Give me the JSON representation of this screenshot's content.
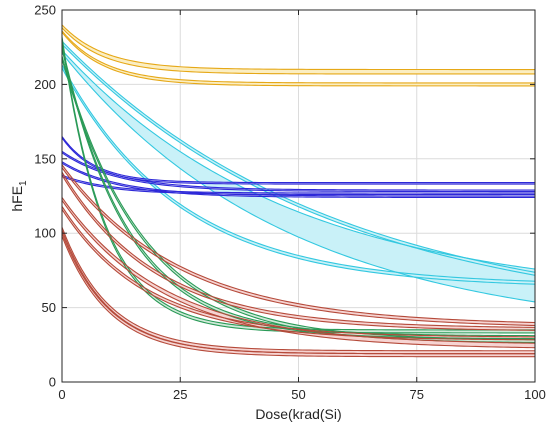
{
  "chart_data": {
    "type": "line",
    "title": "",
    "xlabel": "Dose(krad(Si)",
    "ylabel": "hFE",
    "ylabel_subscript": "1",
    "xlim": [
      0,
      100
    ],
    "ylim": [
      0,
      250
    ],
    "xticks": [
      0,
      25,
      50,
      75,
      100
    ],
    "yticks": [
      0,
      50,
      100,
      150,
      200,
      250
    ],
    "grid": true,
    "legend": "none",
    "series": [
      {
        "color": "#e6a817",
        "fill": "#fbeec2",
        "upper": {
          "start": 240,
          "end": 210,
          "tau": 9
        },
        "lower": {
          "start": 238,
          "end": 207,
          "tau": 9
        }
      },
      {
        "color": "#e6a817",
        "fill": "#fbeec2",
        "upper": {
          "start": 236,
          "end": 201,
          "tau": 9
        },
        "lower": {
          "start": 235,
          "end": 199,
          "tau": 9
        }
      },
      {
        "color": "#33c8e0",
        "fill": "#c9f1f8",
        "upper": {
          "start": 229,
          "end": 40,
          "tau": 58
        },
        "lower": {
          "start": 227,
          "end": 38,
          "tau": 58
        }
      },
      {
        "color": "#33c8e0",
        "fill": "#c9f1f8",
        "upper": {
          "start": 223,
          "end": 55,
          "tau": 48
        },
        "lower": {
          "start": 221,
          "end": 30,
          "tau": 48
        }
      },
      {
        "color": "#33c8e0",
        "fill": "#c9f1f8",
        "upper": {
          "start": 213,
          "end": 65,
          "tau": 25
        },
        "lower": {
          "start": 211,
          "end": 63,
          "tau": 25
        }
      },
      {
        "color": "#2d28d8",
        "fill": "#d9d9f7",
        "upper": {
          "start": 165,
          "end": 134,
          "tau": 7
        },
        "lower": {
          "start": 164,
          "end": 133,
          "tau": 7
        }
      },
      {
        "color": "#2d28d8",
        "fill": "#d9d9f7",
        "upper": {
          "start": 155,
          "end": 129,
          "tau": 12
        },
        "lower": {
          "start": 154,
          "end": 128,
          "tau": 12
        }
      },
      {
        "color": "#2d28d8",
        "fill": "#d9d9f7",
        "upper": {
          "start": 148,
          "end": 125,
          "tau": 12
        },
        "lower": {
          "start": 147,
          "end": 124,
          "tau": 12
        }
      },
      {
        "color": "#2d28d8",
        "fill": "#d9d9f7",
        "upper": {
          "start": 139,
          "end": 127,
          "tau": 10
        },
        "lower": {
          "start": 138,
          "end": 126,
          "tau": 10
        }
      },
      {
        "color": "#2a9a57",
        "fill": "#cfead9",
        "upper": {
          "start": 232,
          "end": 35,
          "tau": 9
        },
        "lower": {
          "start": 230,
          "end": 33,
          "tau": 9
        }
      },
      {
        "color": "#2a9a57",
        "fill": "#cfead9",
        "upper": {
          "start": 226,
          "end": 31,
          "tau": 14
        },
        "lower": {
          "start": 224,
          "end": 29,
          "tau": 14
        }
      },
      {
        "color": "#2a9a57",
        "fill": "#cfead9",
        "upper": {
          "start": 219,
          "end": 28,
          "tau": 17
        },
        "lower": {
          "start": 217,
          "end": 26,
          "tau": 17
        }
      },
      {
        "color": "#b54a3a",
        "fill": "#f6d4d2",
        "upper": {
          "start": 146,
          "end": 38,
          "tau": 25
        },
        "lower": {
          "start": 144,
          "end": 36,
          "tau": 25
        }
      },
      {
        "color": "#b54a3a",
        "fill": "#f6d4d2",
        "upper": {
          "start": 141,
          "end": 36,
          "tau": 20
        },
        "lower": {
          "start": 139,
          "end": 34,
          "tau": 20
        }
      },
      {
        "color": "#b54a3a",
        "fill": "#f6d4d2",
        "upper": {
          "start": 124,
          "end": 25,
          "tau": 22
        },
        "lower": {
          "start": 122,
          "end": 22,
          "tau": 22
        }
      },
      {
        "color": "#b54a3a",
        "fill": "#f6d4d2",
        "upper": {
          "start": 118,
          "end": 30,
          "tau": 18
        },
        "lower": {
          "start": 116,
          "end": 28,
          "tau": 18
        }
      },
      {
        "color": "#b54a3a",
        "fill": "#f6d4d2",
        "upper": {
          "start": 104,
          "end": 21,
          "tau": 10
        },
        "lower": {
          "start": 102,
          "end": 19,
          "tau": 10
        }
      },
      {
        "color": "#b54a3a",
        "fill": "#f6d4d2",
        "upper": {
          "start": 100,
          "end": 19,
          "tau": 10
        },
        "lower": {
          "start": 98,
          "end": 17,
          "tau": 10
        }
      }
    ]
  }
}
